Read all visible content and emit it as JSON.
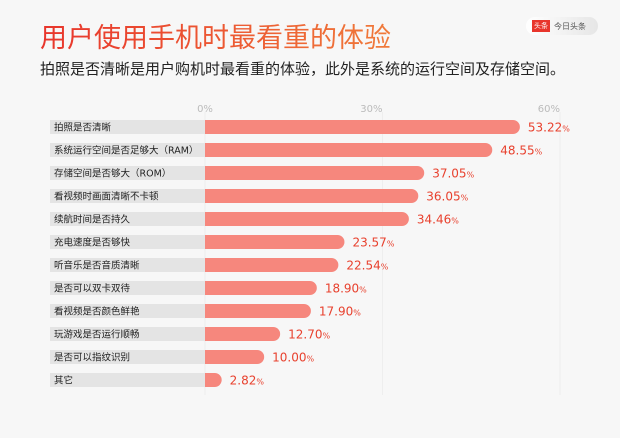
{
  "title": "用户使用手机时最看重的体验",
  "subtitle": "拍照是否清晰是用户购机时最看重的体验，此外是系统的运行空间及存储空间。",
  "logo": {
    "mark": "头条",
    "text": "今日头条"
  },
  "colors": {
    "bar": "#f6877d",
    "label_bg": "#e4e4e4",
    "value": "#e8412e"
  },
  "chart_data": {
    "type": "bar",
    "orientation": "horizontal",
    "xlim": [
      0,
      60
    ],
    "ticks": [
      "0%",
      "30%",
      "60%"
    ],
    "categories": [
      "拍照是否清晰",
      "系统运行空间是否足够大（RAM）",
      "存储空间是否够大（ROM）",
      "看视频时画面清晰不卡顿",
      "续航时间是否持久",
      "充电速度是否够快",
      "听音乐是否音质清晰",
      "是否可以双卡双待",
      "看视频是否颜色鲜艳",
      "玩游戏是否运行顺畅",
      "是否可以指纹识别",
      "其它"
    ],
    "values": [
      53.22,
      48.55,
      37.05,
      36.05,
      34.46,
      23.57,
      22.54,
      18.9,
      17.9,
      12.7,
      10.0,
      2.82
    ],
    "labels": [
      "53.22%",
      "48.55%",
      "37.05%",
      "36.05%",
      "34.46%",
      "23.57%",
      "22.54%",
      "18.90%",
      "17.90%",
      "12.70%",
      "10.00%",
      "2.82%"
    ]
  }
}
